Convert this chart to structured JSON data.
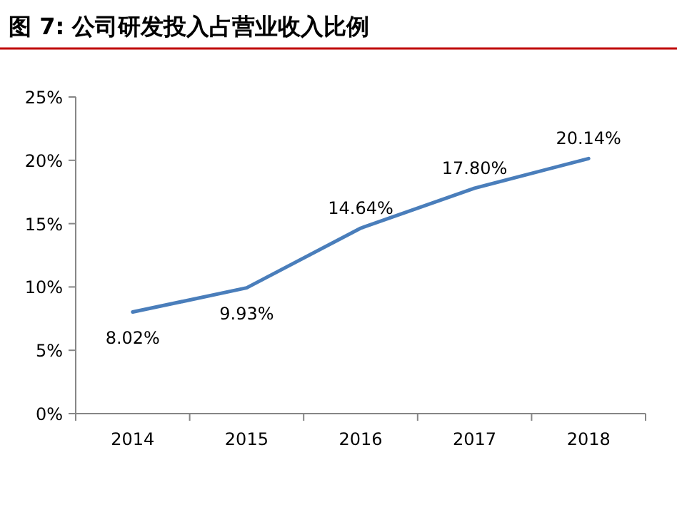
{
  "chart_data": {
    "type": "line",
    "title": "图 7:  公司研发投入占营业收入比例",
    "categories": [
      "2014",
      "2015",
      "2016",
      "2017",
      "2018"
    ],
    "series": [
      {
        "color": "#4a7ebb",
        "values": [
          8.02,
          9.93,
          14.64,
          17.8,
          20.14
        ]
      }
    ],
    "value_labels": [
      "8.02%",
      "9.93%",
      "14.64%",
      "17.80%",
      "20.14%"
    ],
    "ylim": [
      0,
      25
    ],
    "yticks": [
      {
        "value": 0,
        "label": "0%"
      },
      {
        "value": 5,
        "label": "5%"
      },
      {
        "value": 10,
        "label": "10%"
      },
      {
        "value": 15,
        "label": "15%"
      },
      {
        "value": 20,
        "label": "20%"
      },
      {
        "value": 25,
        "label": "25%"
      }
    ],
    "marker": "none",
    "line_style": "solid",
    "grid": false
  }
}
